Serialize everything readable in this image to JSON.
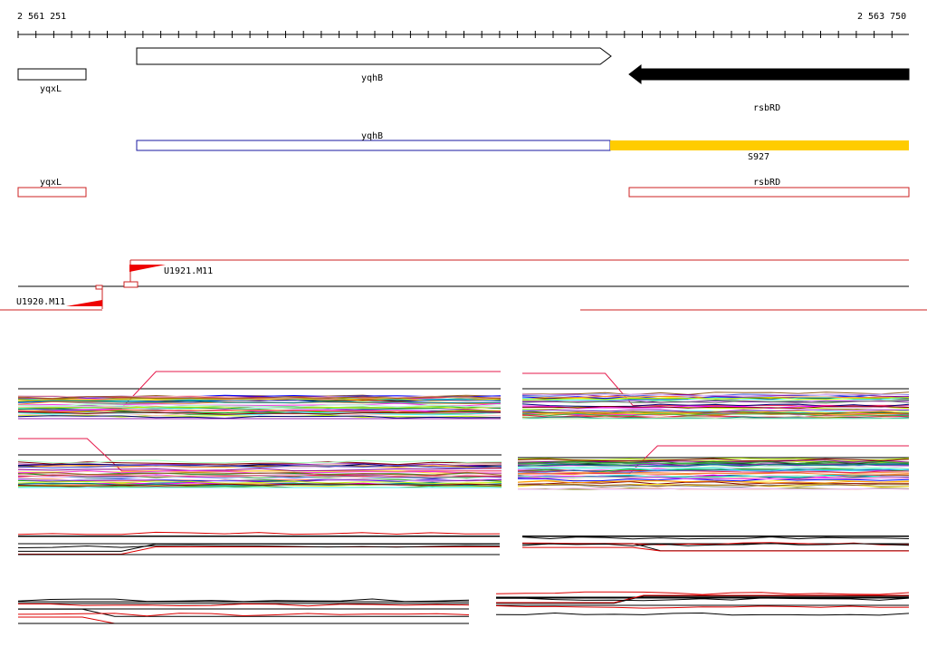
{
  "coords": {
    "start": "2 561 251",
    "end": "2 563 750"
  },
  "genes": [
    {
      "name": "yqxL"
    },
    {
      "name": "yqhB"
    },
    {
      "name": "rsbRD"
    }
  ],
  "transcripts": [
    {
      "name": "yqhB"
    },
    {
      "name": "S927"
    }
  ],
  "operons": [
    {
      "name": "yqxL"
    },
    {
      "name": "rsbRD"
    }
  ],
  "promoters": [
    {
      "name": "U1921.M11"
    },
    {
      "name": "U1920.M11"
    }
  ],
  "colors": {
    "gene_outline": "#000000",
    "transcript_blue": "#1a1aa0",
    "transcript_yellow": "#ffcc00",
    "operon_red": "#cc2222",
    "promoter_red": "#ee0000"
  },
  "expression_panels": [
    {
      "name": "panel-top-left",
      "kind": "many-conditions"
    },
    {
      "name": "panel-top-right",
      "kind": "many-conditions"
    },
    {
      "name": "panel-mid-left",
      "kind": "many-conditions"
    },
    {
      "name": "panel-mid-right",
      "kind": "many-conditions"
    },
    {
      "name": "panel-low-left",
      "kind": "few-conditions"
    },
    {
      "name": "panel-low-right",
      "kind": "few-conditions"
    },
    {
      "name": "panel-bottom-left",
      "kind": "few-conditions"
    },
    {
      "name": "panel-bottom-right",
      "kind": "few-conditions"
    }
  ]
}
